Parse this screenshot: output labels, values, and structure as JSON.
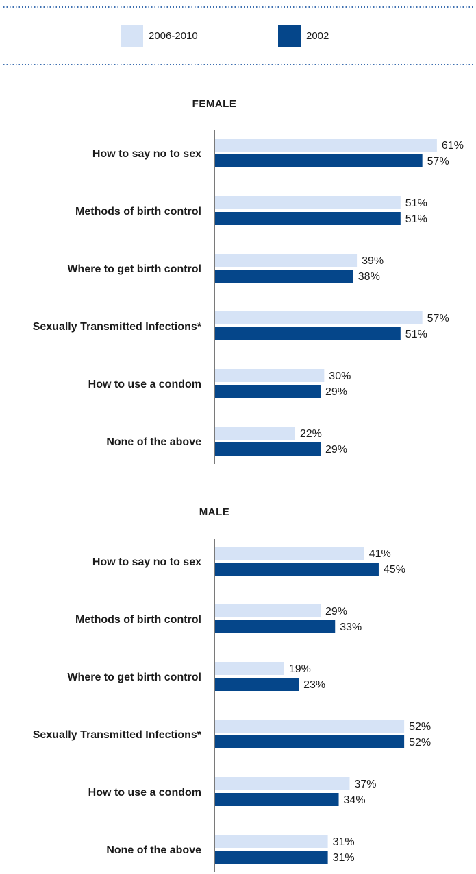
{
  "chart_data": {
    "type": "bar",
    "orientation": "horizontal",
    "legend": {
      "placement": "top",
      "entries": [
        {
          "name": "2006-2010",
          "color": "#d6e3f6"
        },
        {
          "name": "2002",
          "color": "#05468a"
        }
      ]
    },
    "unit": "%",
    "xlim": [
      0,
      65
    ],
    "grid": false,
    "panels": [
      {
        "title": "FEMALE",
        "categories": [
          "How to say no to sex",
          "Methods of birth control",
          "Where to get birth control",
          "Sexually Transmitted Infections*",
          "How to use a condom",
          "None of the above"
        ],
        "series": [
          {
            "name": "2006-2010",
            "values": [
              61,
              51,
              39,
              57,
              30,
              22
            ]
          },
          {
            "name": "2002",
            "values": [
              57,
              51,
              38,
              51,
              29,
              29
            ]
          }
        ]
      },
      {
        "title": "MALE",
        "categories": [
          "How to say no to sex",
          "Methods of birth control",
          "Where to get birth control",
          "Sexually Transmitted Infections*",
          "How to use a condom",
          "None of the above"
        ],
        "series": [
          {
            "name": "2006-2010",
            "values": [
              41,
              29,
              19,
              52,
              37,
              31
            ]
          },
          {
            "name": "2002",
            "values": [
              45,
              33,
              23,
              52,
              34,
              31
            ]
          }
        ]
      }
    ]
  },
  "colors": {
    "light": "#d6e3f6",
    "dark": "#05468a",
    "dotted_rule": "#3d6fb0",
    "axis": "#222222"
  }
}
